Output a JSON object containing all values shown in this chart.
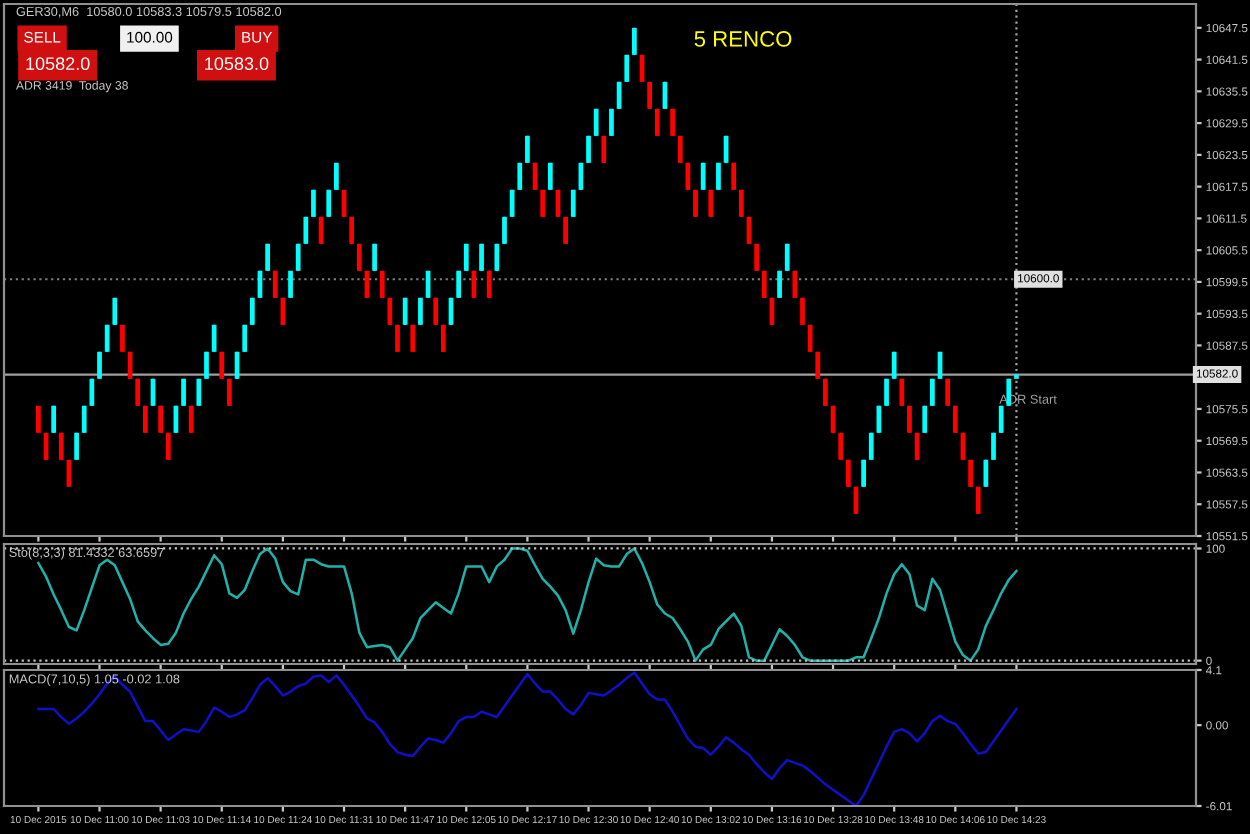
{
  "chart_data": [
    {
      "type": "candlestick",
      "title": "5 RENCO",
      "categories": [
        null,
        null,
        null,
        null,
        "10 Dec 2015",
        null,
        null,
        null,
        null,
        null,
        null,
        null,
        "10 Dec 11:00",
        null,
        null,
        null,
        null,
        null,
        null,
        null,
        "10 Dec 11:03",
        null,
        null,
        null,
        null,
        null,
        null,
        null,
        "10 Dec 11:14",
        null,
        null,
        null,
        null,
        null,
        null,
        null,
        "10 Dec 11:24",
        null,
        null,
        null,
        null,
        null,
        null,
        null,
        "10 Dec 11:31",
        null,
        null,
        null,
        null,
        null,
        null,
        null,
        "10 Dec 11:47",
        null,
        null,
        null,
        null,
        null,
        null,
        null,
        "10 Dec 12:05",
        null,
        null,
        null,
        null,
        null,
        null,
        null,
        "10 Dec 12:17",
        null,
        null,
        null,
        null,
        null,
        null,
        null,
        "10 Dec 12:30",
        null,
        null,
        null,
        null,
        null,
        null,
        null,
        "10 Dec 12:40",
        null,
        null,
        null,
        null,
        null,
        null,
        null,
        "10 Dec 13:02",
        null,
        null,
        null,
        null,
        null,
        null,
        null,
        "10 Dec 13:16",
        null,
        null,
        null,
        null,
        null,
        null,
        null,
        "10 Dec 13:28",
        null,
        null,
        null,
        null,
        null,
        null,
        null,
        "10 Dec 13:48",
        null,
        null,
        null,
        null,
        null,
        null,
        null,
        "10 Dec 14:06",
        null,
        null,
        null,
        null,
        null,
        null,
        null,
        "10 Dec 14:23",
        null,
        null,
        null,
        null,
        null,
        null,
        null,
        null,
        null,
        null,
        null,
        null,
        null,
        null,
        null,
        null,
        null,
        null,
        null,
        null,
        null,
        null,
        null
      ],
      "ohlc": [
        null,
        null,
        null,
        null,
        [
          10576.1,
          10576.1,
          10571.0,
          10571.0
        ],
        [
          10571.0,
          10571.0,
          10565.9,
          10565.9
        ],
        [
          10571.0,
          10576.1,
          10571.0,
          10576.1
        ],
        [
          10571.0,
          10571.0,
          10565.9,
          10565.9
        ],
        [
          10565.9,
          10565.9,
          10560.8,
          10560.8
        ],
        [
          10565.9,
          10571.0,
          10565.9,
          10571.0
        ],
        [
          10571.0,
          10576.1,
          10571.0,
          10576.1
        ],
        [
          10576.1,
          10581.2,
          10576.1,
          10581.2
        ],
        [
          10581.2,
          10586.3,
          10581.2,
          10586.3
        ],
        [
          10586.3,
          10591.4,
          10586.3,
          10591.4
        ],
        [
          10591.4,
          10596.5,
          10591.4,
          10596.5
        ],
        [
          10591.4,
          10591.4,
          10586.3,
          10586.3
        ],
        [
          10586.3,
          10586.3,
          10581.2,
          10581.2
        ],
        [
          10581.2,
          10581.2,
          10576.1,
          10576.1
        ],
        [
          10576.1,
          10576.1,
          10571.0,
          10571.0
        ],
        [
          10576.1,
          10581.2,
          10576.1,
          10581.2
        ],
        [
          10576.1,
          10576.1,
          10571.0,
          10571.0
        ],
        [
          10571.0,
          10571.0,
          10565.9,
          10565.9
        ],
        [
          10571.0,
          10576.1,
          10571.0,
          10576.1
        ],
        [
          10576.1,
          10581.2,
          10576.1,
          10581.2
        ],
        [
          10576.1,
          10576.1,
          10571.0,
          10571.0
        ],
        [
          10576.1,
          10581.2,
          10576.1,
          10581.2
        ],
        [
          10581.2,
          10586.3,
          10581.2,
          10586.3
        ],
        [
          10586.3,
          10591.4,
          10586.3,
          10591.4
        ],
        [
          10586.3,
          10586.3,
          10581.2,
          10581.2
        ],
        [
          10581.2,
          10581.2,
          10576.1,
          10576.1
        ],
        [
          10581.2,
          10586.3,
          10581.2,
          10586.3
        ],
        [
          10586.3,
          10591.4,
          10586.3,
          10591.4
        ],
        [
          10591.4,
          10596.5,
          10591.4,
          10596.5
        ],
        [
          10596.5,
          10601.6,
          10596.5,
          10601.6
        ],
        [
          10601.6,
          10606.7,
          10601.6,
          10606.7
        ],
        [
          10601.6,
          10601.6,
          10596.5,
          10596.5
        ],
        [
          10596.5,
          10596.5,
          10591.4,
          10591.4
        ],
        [
          10596.5,
          10601.6,
          10596.5,
          10601.6
        ],
        [
          10601.6,
          10606.7,
          10601.6,
          10606.7
        ],
        [
          10606.7,
          10611.8,
          10606.7,
          10611.8
        ],
        [
          10611.8,
          10616.9,
          10611.8,
          10616.9
        ],
        [
          10611.8,
          10611.8,
          10606.7,
          10606.7
        ],
        [
          10611.8,
          10616.9,
          10611.8,
          10616.9
        ],
        [
          10616.9,
          10622.0,
          10616.9,
          10622.0
        ],
        [
          10616.9,
          10616.9,
          10611.8,
          10611.8
        ],
        [
          10611.8,
          10611.8,
          10606.7,
          10606.7
        ],
        [
          10606.7,
          10606.7,
          10601.6,
          10601.6
        ],
        [
          10601.6,
          10601.6,
          10596.5,
          10596.5
        ],
        [
          10601.6,
          10606.7,
          10601.6,
          10606.7
        ],
        [
          10601.6,
          10601.6,
          10596.5,
          10596.5
        ],
        [
          10596.5,
          10596.5,
          10591.4,
          10591.4
        ],
        [
          10591.4,
          10591.4,
          10586.3,
          10586.3
        ],
        [
          10591.4,
          10596.5,
          10591.4,
          10596.5
        ],
        [
          10591.4,
          10591.4,
          10586.3,
          10586.3
        ],
        [
          10591.4,
          10596.5,
          10591.4,
          10596.5
        ],
        [
          10596.5,
          10601.6,
          10596.5,
          10601.6
        ],
        [
          10596.5,
          10596.5,
          10591.4,
          10591.4
        ],
        [
          10591.4,
          10591.4,
          10586.3,
          10586.3
        ],
        [
          10591.4,
          10596.5,
          10591.4,
          10596.5
        ],
        [
          10596.5,
          10601.6,
          10596.5,
          10601.6
        ],
        [
          10601.6,
          10606.7,
          10601.6,
          10606.7
        ],
        [
          10601.6,
          10601.6,
          10596.5,
          10596.5
        ],
        [
          10601.6,
          10606.7,
          10601.6,
          10606.7
        ],
        [
          10601.6,
          10601.6,
          10596.5,
          10596.5
        ],
        [
          10601.6,
          10606.7,
          10601.6,
          10606.7
        ],
        [
          10606.7,
          10611.8,
          10606.7,
          10611.8
        ],
        [
          10611.8,
          10616.9,
          10611.8,
          10616.9
        ],
        [
          10616.9,
          10622.0,
          10616.9,
          10622.0
        ],
        [
          10622.0,
          10627.1,
          10622.0,
          10627.1
        ],
        [
          10622.0,
          10622.0,
          10616.9,
          10616.9
        ],
        [
          10616.9,
          10616.9,
          10611.8,
          10611.8
        ],
        [
          10616.9,
          10622.0,
          10616.9,
          10622.0
        ],
        [
          10616.9,
          10616.9,
          10611.8,
          10611.8
        ],
        [
          10611.8,
          10611.8,
          10606.7,
          10606.7
        ],
        [
          10611.8,
          10616.9,
          10611.8,
          10616.9
        ],
        [
          10616.9,
          10622.0,
          10616.9,
          10622.0
        ],
        [
          10622.0,
          10627.1,
          10622.0,
          10627.1
        ],
        [
          10627.1,
          10632.2,
          10627.1,
          10632.2
        ],
        [
          10627.1,
          10627.1,
          10622.0,
          10622.0
        ],
        [
          10627.1,
          10632.2,
          10627.1,
          10632.2
        ],
        [
          10632.2,
          10637.3,
          10632.2,
          10637.3
        ],
        [
          10637.3,
          10642.4,
          10637.3,
          10642.4
        ],
        [
          10642.4,
          10647.5,
          10642.4,
          10647.5
        ],
        [
          10642.4,
          10642.4,
          10637.3,
          10637.3
        ],
        [
          10637.3,
          10637.3,
          10632.2,
          10632.2
        ],
        [
          10632.2,
          10632.2,
          10627.1,
          10627.1
        ],
        [
          10632.2,
          10637.3,
          10632.2,
          10637.3
        ],
        [
          10632.2,
          10632.2,
          10627.1,
          10627.1
        ],
        [
          10627.1,
          10627.1,
          10622.0,
          10622.0
        ],
        [
          10622.0,
          10622.0,
          10616.9,
          10616.9
        ],
        [
          10616.9,
          10616.9,
          10611.8,
          10611.8
        ],
        [
          10616.9,
          10622.0,
          10616.9,
          10622.0
        ],
        [
          10616.9,
          10616.9,
          10611.8,
          10611.8
        ],
        [
          10616.9,
          10622.0,
          10616.9,
          10622.0
        ],
        [
          10622.0,
          10627.1,
          10622.0,
          10627.1
        ],
        [
          10622.0,
          10622.0,
          10616.9,
          10616.9
        ],
        [
          10616.9,
          10616.9,
          10611.8,
          10611.8
        ],
        [
          10611.8,
          10611.8,
          10606.7,
          10606.7
        ],
        [
          10606.7,
          10606.7,
          10601.6,
          10601.6
        ],
        [
          10601.6,
          10601.6,
          10596.5,
          10596.5
        ],
        [
          10596.5,
          10596.5,
          10591.4,
          10591.4
        ],
        [
          10596.5,
          10601.6,
          10596.5,
          10601.6
        ],
        [
          10601.6,
          10606.7,
          10601.6,
          10606.7
        ],
        [
          10601.6,
          10601.6,
          10596.5,
          10596.5
        ],
        [
          10596.5,
          10596.5,
          10591.4,
          10591.4
        ],
        [
          10591.4,
          10591.4,
          10586.3,
          10586.3
        ],
        [
          10586.3,
          10586.3,
          10581.2,
          10581.2
        ],
        [
          10581.2,
          10581.2,
          10576.1,
          10576.1
        ],
        [
          10576.1,
          10576.1,
          10571.0,
          10571.0
        ],
        [
          10571.0,
          10571.0,
          10565.9,
          10565.9
        ],
        [
          10565.9,
          10565.9,
          10560.8,
          10560.8
        ],
        [
          10560.8,
          10560.8,
          10555.7,
          10555.7
        ],
        [
          10560.8,
          10565.9,
          10560.8,
          10565.9
        ],
        [
          10565.9,
          10571.0,
          10565.9,
          10571.0
        ],
        [
          10571.0,
          10576.1,
          10571.0,
          10576.1
        ],
        [
          10576.1,
          10581.2,
          10576.1,
          10581.2
        ],
        [
          10581.2,
          10586.3,
          10581.2,
          10586.3
        ],
        [
          10581.2,
          10581.2,
          10576.1,
          10576.1
        ],
        [
          10576.1,
          10576.1,
          10571.0,
          10571.0
        ],
        [
          10571.0,
          10571.0,
          10565.9,
          10565.9
        ],
        [
          10571.0,
          10576.1,
          10571.0,
          10576.1
        ],
        [
          10576.1,
          10581.2,
          10576.1,
          10581.2
        ],
        [
          10581.2,
          10586.3,
          10581.2,
          10586.3
        ],
        [
          10581.2,
          10581.2,
          10576.1,
          10576.1
        ],
        [
          10576.1,
          10576.1,
          10571.0,
          10571.0
        ],
        [
          10571.0,
          10571.0,
          10565.9,
          10565.9
        ],
        [
          10565.9,
          10565.9,
          10560.8,
          10560.8
        ],
        [
          10560.8,
          10560.8,
          10555.7,
          10555.7
        ],
        [
          10560.8,
          10565.9,
          10560.8,
          10565.9
        ],
        [
          10565.9,
          10571.0,
          10565.9,
          10571.0
        ],
        [
          10571.0,
          10576.1,
          10571.0,
          10576.1
        ],
        [
          10576.1,
          10581.2,
          10576.1,
          10581.2
        ],
        [
          10581.2,
          10582.0,
          10581.2,
          10582.0
        ],
        null,
        null,
        null,
        null,
        null,
        null,
        null,
        null,
        null,
        null,
        null,
        null,
        null,
        null,
        null,
        null,
        null,
        null,
        null,
        null,
        null,
        null,
        null
      ],
      "colors": [
        null,
        null,
        null,
        null,
        "#ff0000",
        "#ff0000",
        "#00ffff",
        "#ff0000",
        "#ff0000",
        "#00ffff",
        "#00ffff",
        "#00ffff",
        "#00ffff",
        "#00ffff",
        "#00ffff",
        "#ff0000",
        "#ff0000",
        "#ff0000",
        "#ff0000",
        "#00ffff",
        "#ff0000",
        "#ff0000",
        "#00ffff",
        "#00ffff",
        "#ff0000",
        "#00ffff",
        "#00ffff",
        "#00ffff",
        "#ff0000",
        "#ff0000",
        "#00ffff",
        "#00ffff",
        "#00ffff",
        "#00ffff",
        "#00ffff",
        "#ff0000",
        "#ff0000",
        "#00ffff",
        "#00ffff",
        "#00ffff",
        "#00ffff",
        "#ff0000",
        "#00ffff",
        "#00ffff",
        "#ff0000",
        "#ff0000",
        "#ff0000",
        "#ff0000",
        "#00ffff",
        "#ff0000",
        "#ff0000",
        "#ff0000",
        "#00ffff",
        "#ff0000",
        "#00ffff",
        "#00ffff",
        "#ff0000",
        "#ff0000",
        "#00ffff",
        "#00ffff",
        "#00ffff",
        "#ff0000",
        "#00ffff",
        "#ff0000",
        "#00ffff",
        "#00ffff",
        "#00ffff",
        "#00ffff",
        "#00ffff",
        "#ff0000",
        "#ff0000",
        "#00ffff",
        "#ff0000",
        "#ff0000",
        "#00ffff",
        "#00ffff",
        "#00ffff",
        "#00ffff",
        "#ff0000",
        "#00ffff",
        "#00ffff",
        "#00ffff",
        "#00ffff",
        "#ff0000",
        "#ff0000",
        "#ff0000",
        "#00ffff",
        "#ff0000",
        "#ff0000",
        "#ff0000",
        "#ff0000",
        "#00ffff",
        "#ff0000",
        "#00ffff",
        "#00ffff",
        "#ff0000",
        "#ff0000",
        "#ff0000",
        "#ff0000",
        "#ff0000",
        "#ff0000",
        "#00ffff",
        "#00ffff",
        "#ff0000",
        "#ff0000",
        "#ff0000",
        "#ff0000",
        "#ff0000",
        "#ff0000",
        "#ff0000",
        "#ff0000",
        "#ff0000",
        "#00ffff",
        "#00ffff",
        "#00ffff",
        "#00ffff",
        "#00ffff",
        "#ff0000",
        "#ff0000",
        "#ff0000",
        "#00ffff",
        "#00ffff",
        "#00ffff",
        "#ff0000",
        "#ff0000",
        "#ff0000",
        "#ff0000",
        "#ff0000",
        "#00ffff",
        "#00ffff",
        "#00ffff",
        "#00ffff",
        "#00ffff",
        null,
        null,
        null,
        null,
        null,
        null,
        null,
        null,
        null,
        null,
        null,
        null,
        null,
        null,
        null,
        null,
        null,
        null,
        null,
        null,
        null,
        null,
        null
      ],
      "ylim": [
        10551.5,
        10652.0
      ],
      "yticks": [
        10551.5,
        10557.5,
        10563.5,
        10569.5,
        10575.5,
        10587.5,
        10593.5,
        10599.5,
        10605.5,
        10611.5,
        10617.5,
        10623.5,
        10629.5,
        10635.5,
        10641.5,
        10647.5
      ],
      "ref_lines": [
        {
          "axis": "y",
          "value": 10600.0,
          "label": "10600.0",
          "color": "#808080",
          "line_style": "dotted"
        },
        {
          "axis": "y",
          "value": 10582.0,
          "label": "10582.0",
          "color": "#a0a0a0",
          "line_style": "solid"
        },
        {
          "axis": "x",
          "value": "10 Dec 14:23",
          "color": "#a0a0a0",
          "line_style": "dotted"
        }
      ],
      "annotations": [
        "GER30,M6  10580.0 10583.3 10579.5 10582.0",
        "SELL",
        "100.00",
        "BUY",
        "10582.0",
        "10583.0",
        "ADR 3419  Today 38",
        "ADR Start"
      ],
      "grid": false,
      "tick_labels": "y"
    },
    {
      "type": "line",
      "title": "Sto(8,3,3) 81.4332 63.6597",
      "categories": [
        null,
        null,
        null,
        null,
        "10 Dec 2015",
        null,
        null,
        null,
        null,
        null,
        null,
        null,
        "10 Dec 11:00",
        null,
        null,
        null,
        null,
        null,
        null,
        null,
        "10 Dec 11:03",
        null,
        null,
        null,
        null,
        null,
        null,
        null,
        "10 Dec 11:14",
        null,
        null,
        null,
        null,
        null,
        null,
        null,
        "10 Dec 11:24",
        null,
        null,
        null,
        null,
        null,
        null,
        null,
        "10 Dec 11:31",
        null,
        null,
        null,
        null,
        null,
        null,
        null,
        "10 Dec 11:47",
        null,
        null,
        null,
        null,
        null,
        null,
        null,
        "10 Dec 12:05",
        null,
        null,
        null,
        null,
        null,
        null,
        null,
        "10 Dec 12:17",
        null,
        null,
        null,
        null,
        null,
        null,
        null,
        "10 Dec 12:30",
        null,
        null,
        null,
        null,
        null,
        null,
        null,
        "10 Dec 12:40",
        null,
        null,
        null,
        null,
        null,
        null,
        null,
        "10 Dec 13:02",
        null,
        null,
        null,
        null,
        null,
        null,
        null,
        "10 Dec 13:16",
        null,
        null,
        null,
        null,
        null,
        null,
        null,
        "10 Dec 13:28",
        null,
        null,
        null,
        null,
        null,
        null,
        null,
        "10 Dec 13:48",
        null,
        null,
        null,
        null,
        null,
        null,
        null,
        "10 Dec 14:06",
        null,
        null,
        null,
        null,
        null,
        null,
        null,
        "10 Dec 14:23",
        null,
        null,
        null,
        null,
        null,
        null,
        null,
        null,
        null,
        null,
        null,
        null,
        null,
        null,
        null,
        null,
        null,
        null,
        null,
        null,
        null,
        null,
        null
      ],
      "series": [
        {
          "color": "#20b2aa",
          "values": [
            null,
            null,
            null,
            null,
            87,
            75,
            59,
            45,
            30,
            27,
            45,
            65,
            85,
            90,
            85,
            70,
            55,
            35,
            27,
            20,
            14,
            15,
            25,
            42,
            55,
            66,
            80,
            94,
            86,
            60,
            56,
            63,
            80,
            95,
            100,
            91,
            70,
            62,
            59,
            90,
            90,
            86,
            84,
            84,
            84,
            60,
            25,
            12,
            13,
            14,
            12,
            0,
            10,
            20,
            38,
            45,
            52,
            47,
            42,
            60,
            84,
            84,
            84,
            70,
            84,
            90,
            100,
            100,
            98,
            85,
            73,
            66,
            58,
            45,
            24,
            45,
            70,
            91,
            85,
            84,
            84,
            95,
            100,
            87,
            70,
            50,
            42,
            38,
            28,
            17,
            0,
            10,
            14,
            28,
            35,
            42,
            31,
            3,
            0,
            0,
            14,
            28,
            22,
            14,
            3,
            0,
            0,
            0,
            0,
            0,
            0,
            3,
            3,
            20,
            38,
            60,
            77,
            86,
            77,
            49,
            45,
            73,
            63,
            40,
            17,
            5,
            0,
            10,
            31,
            45,
            60,
            72,
            80,
            null,
            null,
            null,
            null,
            null,
            null,
            null,
            null,
            null,
            null,
            null,
            null,
            null,
            null,
            null,
            null,
            null,
            null,
            null,
            null,
            null,
            null,
            null
          ]
        }
      ],
      "ylim": [
        -3,
        104
      ],
      "yticks": [
        0,
        100
      ],
      "ref_lines": [
        {
          "axis": "y",
          "value": 100,
          "color": "#c0c0c0",
          "line_style": "dotted"
        },
        {
          "axis": "y",
          "value": 0,
          "color": "#c0c0c0",
          "line_style": "dotted"
        }
      ],
      "grid": false,
      "tick_labels": "y"
    },
    {
      "type": "line",
      "title": "MACD(7,10,5) 1.05 -0.02 1.08",
      "categories": [
        null,
        null,
        null,
        null,
        "10 Dec 2015",
        null,
        null,
        null,
        null,
        null,
        null,
        null,
        "10 Dec 11:00",
        null,
        null,
        null,
        null,
        null,
        null,
        null,
        "10 Dec 11:03",
        null,
        null,
        null,
        null,
        null,
        null,
        null,
        "10 Dec 11:14",
        null,
        null,
        null,
        null,
        null,
        null,
        null,
        "10 Dec 11:24",
        null,
        null,
        null,
        null,
        null,
        null,
        null,
        "10 Dec 11:31",
        null,
        null,
        null,
        null,
        null,
        null,
        null,
        "10 Dec 11:47",
        null,
        null,
        null,
        null,
        null,
        null,
        null,
        "10 Dec 12:05",
        null,
        null,
        null,
        null,
        null,
        null,
        null,
        "10 Dec 12:17",
        null,
        null,
        null,
        null,
        null,
        null,
        null,
        "10 Dec 12:30",
        null,
        null,
        null,
        null,
        null,
        null,
        null,
        "10 Dec 12:40",
        null,
        null,
        null,
        null,
        null,
        null,
        null,
        "10 Dec 13:02",
        null,
        null,
        null,
        null,
        null,
        null,
        null,
        "10 Dec 13:16",
        null,
        null,
        null,
        null,
        null,
        null,
        null,
        "10 Dec 13:28",
        null,
        null,
        null,
        null,
        null,
        null,
        null,
        "10 Dec 13:48",
        null,
        null,
        null,
        null,
        null,
        null,
        null,
        "10 Dec 14:06",
        null,
        null,
        null,
        null,
        null,
        null,
        null,
        "10 Dec 14:23",
        null,
        null,
        null,
        null,
        null,
        null,
        null,
        null,
        null,
        null,
        null,
        null,
        null,
        null,
        null,
        null,
        null,
        null,
        null,
        null,
        null,
        null,
        null
      ],
      "series": [
        {
          "color": "#1010c8",
          "values": [
            null,
            null,
            null,
            null,
            1.2,
            1.2,
            1.2,
            0.6,
            0.1,
            0.5,
            1.0,
            1.6,
            2.3,
            3.1,
            3.6,
            3.0,
            2.5,
            1.4,
            0.3,
            0.3,
            -0.4,
            -1.1,
            -0.7,
            -0.3,
            -0.4,
            -0.5,
            0.3,
            1.3,
            1.0,
            0.6,
            0.8,
            1.1,
            2.0,
            3.0,
            3.5,
            2.9,
            2.2,
            2.5,
            2.9,
            3.1,
            3.6,
            3.7,
            3.2,
            3.7,
            3.0,
            2.2,
            1.4,
            0.5,
            0.2,
            -0.5,
            -1.4,
            -2.0,
            -2.2,
            -2.3,
            -1.6,
            -1.0,
            -1.1,
            -1.3,
            -0.6,
            0.3,
            0.6,
            0.6,
            1.0,
            0.8,
            0.6,
            1.4,
            2.2,
            3.0,
            3.8,
            3.1,
            2.5,
            2.5,
            1.9,
            1.2,
            0.8,
            1.5,
            2.4,
            2.3,
            2.2,
            2.6,
            3.0,
            3.5,
            3.9,
            3.1,
            2.3,
            1.9,
            1.9,
            1.0,
            0.0,
            -1.0,
            -1.6,
            -1.7,
            -2.2,
            -1.6,
            -0.9,
            -1.3,
            -1.8,
            -2.2,
            -2.9,
            -3.5,
            -4.0,
            -3.2,
            -2.6,
            -2.8,
            -3.0,
            -3.4,
            -3.9,
            -4.4,
            -4.8,
            -5.2,
            -5.6,
            -6.0,
            -5.2,
            -4.0,
            -2.8,
            -1.6,
            -0.5,
            -0.3,
            -0.6,
            -1.2,
            -0.6,
            0.3,
            0.7,
            0.3,
            0.1,
            -0.6,
            -1.4,
            -2.1,
            -2.0,
            -1.2,
            -0.4,
            0.4,
            1.2,
            null,
            null,
            null,
            null,
            null,
            null,
            null,
            null,
            null,
            null,
            null,
            null,
            null,
            null,
            null,
            null,
            null,
            null,
            null,
            null,
            null,
            null,
            null
          ]
        }
      ],
      "ylim": [
        -6.01,
        4.1
      ],
      "yticks": [
        -6.01,
        {
          "value": 0,
          "label": "0.00"
        },
        4.1
      ],
      "grid": false
    }
  ]
}
